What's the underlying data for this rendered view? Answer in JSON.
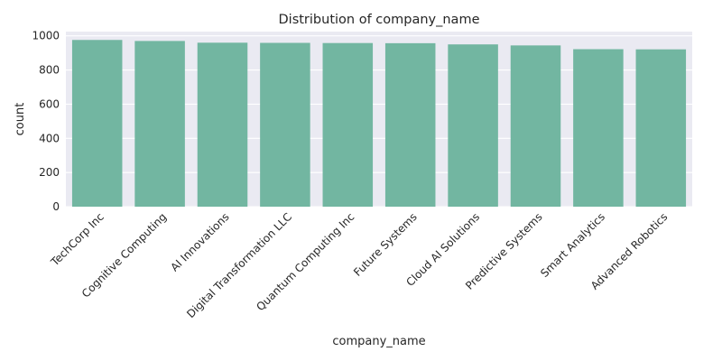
{
  "chart_data": {
    "type": "bar",
    "title": "Distribution of company_name",
    "xlabel": "company_name",
    "ylabel": "count",
    "categories": [
      "TechCorp Inc",
      "Cognitive Computing",
      "AI Innovations",
      "Digital Transformation LLC",
      "Quantum Computing Inc",
      "Future Systems",
      "Cloud AI Solutions",
      "Predictive Systems",
      "Smart Analytics",
      "Advanced Robotics"
    ],
    "values": [
      976,
      970,
      960,
      959,
      958,
      957,
      950,
      944,
      922,
      921
    ],
    "ylim": [
      0,
      1025
    ],
    "yticks": [
      0,
      200,
      400,
      600,
      800,
      1000
    ],
    "grid": true,
    "colors": {
      "bar": "#72b6a1",
      "plot_background": "#eaeaf2",
      "grid": "#ffffff",
      "text": "#262626"
    }
  }
}
